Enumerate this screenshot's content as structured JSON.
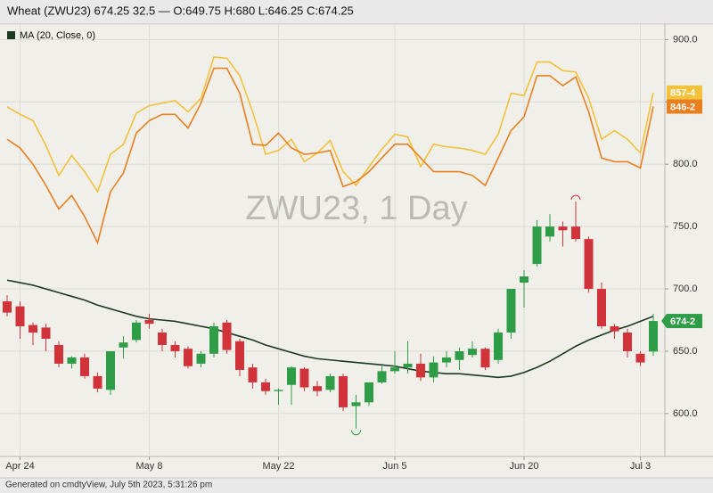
{
  "chart_data": {
    "type": "candlestick",
    "title": "Wheat (ZWU23) 674.25 32.5 — O:649.75 H:680 L:646.25 C:674.25",
    "watermark": "ZWU23, 1 Day",
    "footer": "Generated on cmdtyView, July 5th 2023, 5:31:26 pm",
    "categories": [
      null,
      "Apr 24",
      null,
      null,
      null,
      null,
      null,
      null,
      null,
      null,
      null,
      "May 8",
      null,
      null,
      null,
      null,
      null,
      null,
      null,
      null,
      null,
      "May 22",
      null,
      null,
      null,
      null,
      null,
      null,
      null,
      null,
      "Jun 5",
      null,
      null,
      null,
      null,
      null,
      null,
      null,
      null,
      null,
      "Jun 20",
      null,
      null,
      null,
      null,
      null,
      null,
      null,
      null,
      "Jul 3",
      null
    ],
    "open": [
      690,
      686,
      671,
      669,
      655,
      640,
      645,
      630,
      619,
      653,
      659,
      675,
      665,
      655,
      652,
      640,
      648,
      673,
      658,
      637,
      625,
      618,
      623,
      636,
      622,
      619,
      630,
      606,
      609,
      625,
      634,
      637,
      640,
      629,
      641,
      643,
      647,
      652,
      643,
      665,
      705,
      720,
      742,
      750,
      750,
      740,
      700,
      670,
      665,
      648,
      649.75
    ],
    "high": [
      695,
      690,
      673,
      672,
      658,
      646,
      648,
      633,
      650,
      662,
      675,
      680,
      668,
      658,
      654,
      650,
      673,
      675,
      660,
      640,
      628,
      620,
      638,
      637,
      626,
      632,
      632,
      615,
      625,
      638,
      650,
      658,
      648,
      646,
      650,
      653,
      658,
      653,
      668,
      700,
      715,
      755,
      760,
      754,
      770,
      742,
      705,
      672,
      668,
      650,
      680
    ],
    "low": [
      678,
      660,
      655,
      650,
      637,
      636,
      628,
      617,
      615,
      644,
      657,
      668,
      650,
      645,
      636,
      637,
      645,
      648,
      630,
      620,
      615,
      607,
      607,
      618,
      614,
      617,
      602,
      588,
      606,
      624,
      632,
      632,
      626,
      625,
      637,
      635,
      645,
      635,
      640,
      660,
      685,
      718,
      738,
      734,
      738,
      697,
      668,
      660,
      645,
      638,
      646.25
    ],
    "close": [
      681,
      670,
      665,
      660,
      640,
      645,
      630,
      620,
      650,
      657,
      673,
      672,
      655,
      650,
      638,
      648,
      670,
      651,
      635,
      625,
      618,
      619,
      637,
      621,
      618,
      630,
      605,
      609,
      625,
      634,
      637,
      640,
      629,
      641,
      645,
      650,
      652,
      637,
      665,
      700,
      710,
      750,
      750,
      747,
      740,
      700,
      670,
      666,
      650,
      641,
      674.25
    ],
    "close_label": "674-2",
    "up_color": "#2f9c48",
    "down_color": "#d0343a",
    "lines": [
      {
        "name": "MA (20, Close, 0)",
        "color": "#1b3a20",
        "values": [
          707,
          705,
          703,
          700,
          697,
          694,
          691,
          687,
          684,
          681,
          678,
          676,
          675,
          674,
          672,
          670,
          668,
          665,
          662,
          659,
          655,
          652,
          649,
          646,
          644,
          643,
          642,
          641,
          640,
          639,
          638,
          636,
          634,
          633,
          632,
          632,
          631,
          630,
          629,
          630,
          633,
          637,
          642,
          648,
          654,
          659,
          663,
          667,
          670,
          674,
          678
        ]
      },
      {
        "color": "#f2c23c",
        "last_label": "857-4",
        "values": [
          846,
          840,
          835,
          815,
          791,
          807,
          794,
          778,
          808,
          816,
          841,
          847,
          849,
          851,
          842,
          853,
          886,
          885,
          871,
          842,
          808,
          811,
          820,
          802,
          809,
          819,
          794,
          783,
          798,
          812,
          824,
          822,
          798,
          816,
          814,
          813,
          811,
          808,
          824,
          857,
          855,
          882,
          882,
          875,
          874,
          853,
          820,
          827,
          820,
          809,
          857.5
        ]
      },
      {
        "color": "#e8801f",
        "last_label": "846-2",
        "values": [
          820,
          813,
          800,
          783,
          764,
          775,
          758,
          737,
          778,
          793,
          825,
          835,
          840,
          840,
          829,
          849,
          877,
          877,
          857,
          816,
          815,
          825,
          813,
          808,
          809,
          811,
          782,
          786,
          794,
          805,
          816,
          816,
          805,
          794,
          794,
          794,
          791,
          783,
          805,
          827,
          838,
          871,
          871,
          863,
          870,
          842,
          805,
          802,
          802,
          797,
          846.25
        ]
      }
    ],
    "ylim": [
      565.6,
      911.7
    ],
    "yticks": [
      {
        "value": 600,
        "label": "600.0"
      },
      {
        "value": 650,
        "label": "650.0"
      },
      {
        "value": 700,
        "label": "700.0"
      },
      {
        "value": 750,
        "label": "750.0"
      },
      {
        "value": 800,
        "label": "800.0"
      },
      {
        "value": 850,
        "label": "850.0"
      },
      {
        "value": 900,
        "label": "900.0"
      }
    ],
    "grid": true
  }
}
